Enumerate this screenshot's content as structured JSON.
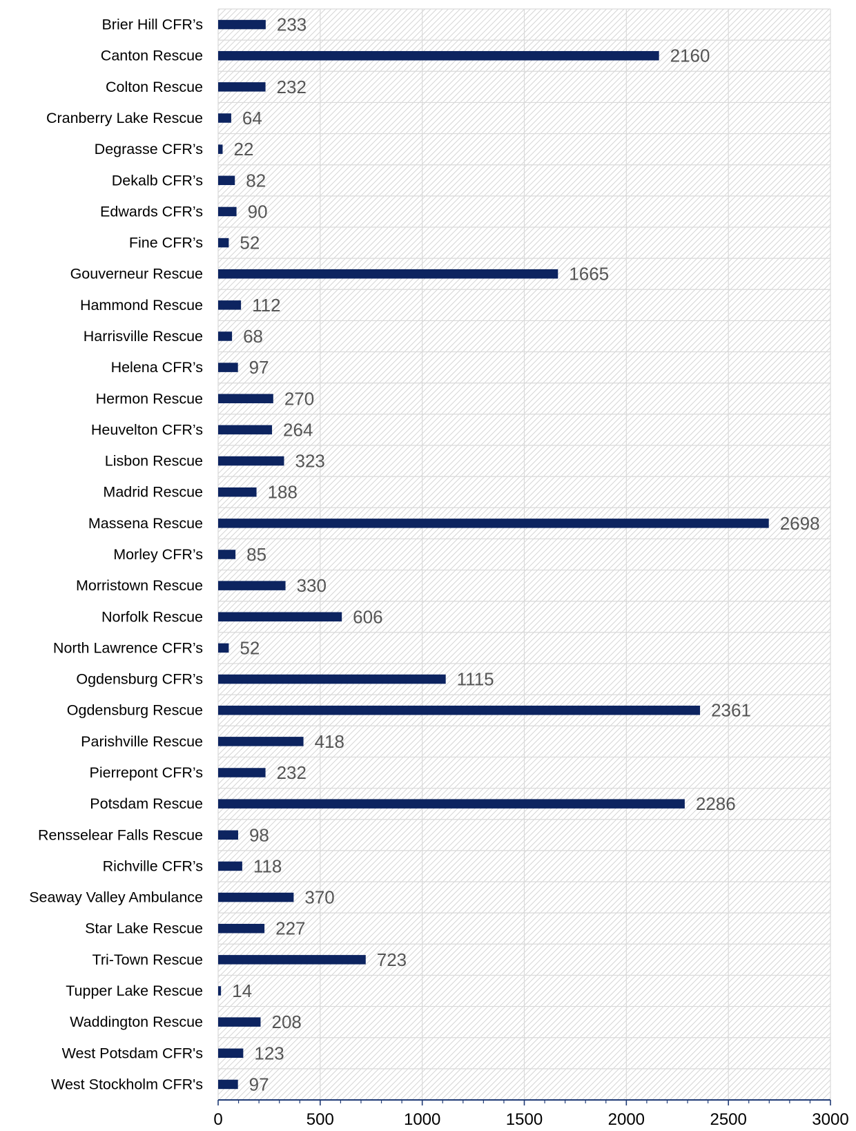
{
  "chart_data": {
    "type": "bar",
    "orientation": "horizontal",
    "title": "",
    "xlabel": "",
    "ylabel": "",
    "xlim": [
      0,
      3000
    ],
    "x_ticks": [
      "0",
      "500",
      "1000",
      "1500",
      "2000",
      "2500",
      "3000"
    ],
    "grid": true,
    "legend": "none",
    "bar_color": "#0d2460",
    "categories": [
      "Brier Hill CFR’s",
      "Canton Rescue",
      "Colton Rescue",
      "Cranberry Lake Rescue",
      "Degrasse CFR’s",
      "Dekalb CFR’s",
      "Edwards CFR’s",
      "Fine CFR’s",
      "Gouverneur Rescue",
      "Hammond Rescue",
      "Harrisville Rescue",
      "Helena CFR’s",
      "Hermon Rescue",
      "Heuvelton CFR’s",
      "Lisbon Rescue",
      "Madrid Rescue",
      "Massena Rescue",
      "Morley CFR’s",
      "Morristown Rescue",
      "Norfolk Rescue",
      "North Lawrence CFR’s",
      "Ogdensburg CFR’s",
      "Ogdensburg Rescue",
      "Parishville Rescue",
      "Pierrepont CFR’s",
      "Potsdam Rescue",
      "Rensselear Falls Rescue",
      "Richville CFR’s",
      "Seaway Valley Ambulance",
      "Star Lake Rescue",
      "Tri-Town Rescue",
      "Tupper Lake Rescue",
      "Waddington Rescue",
      "West Potsdam CFR's",
      "West Stockholm CFR's"
    ],
    "values": [
      233,
      2160,
      232,
      64,
      22,
      82,
      90,
      52,
      1665,
      112,
      68,
      97,
      270,
      264,
      323,
      188,
      2698,
      85,
      330,
      606,
      52,
      1115,
      2361,
      418,
      232,
      2286,
      98,
      118,
      370,
      227,
      723,
      14,
      208,
      123,
      97
    ]
  }
}
